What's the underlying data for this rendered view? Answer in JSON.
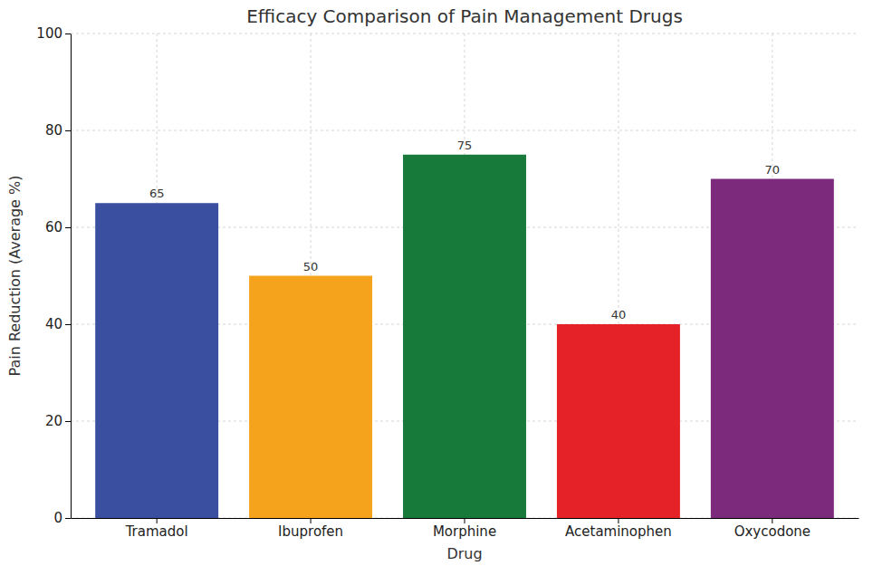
{
  "chart_data": {
    "type": "bar",
    "title": "Efficacy Comparison of Pain Management Drugs",
    "x_label": "Drug",
    "y_label": "Pain Reduction (Average %)",
    "categories": [
      "Tramadol",
      "Ibuprofen",
      "Morphine",
      "Acetaminophen",
      "Oxycodone"
    ],
    "values": [
      65,
      50,
      75,
      40,
      70
    ],
    "colors": [
      "#3a4fa0",
      "#f5a31c",
      "#177a3a",
      "#e52227",
      "#7b2a7c"
    ],
    "ylim": [
      0,
      100
    ],
    "yticks": [
      0,
      20,
      40,
      60,
      80,
      100
    ],
    "grid": true,
    "data_labels": true
  }
}
